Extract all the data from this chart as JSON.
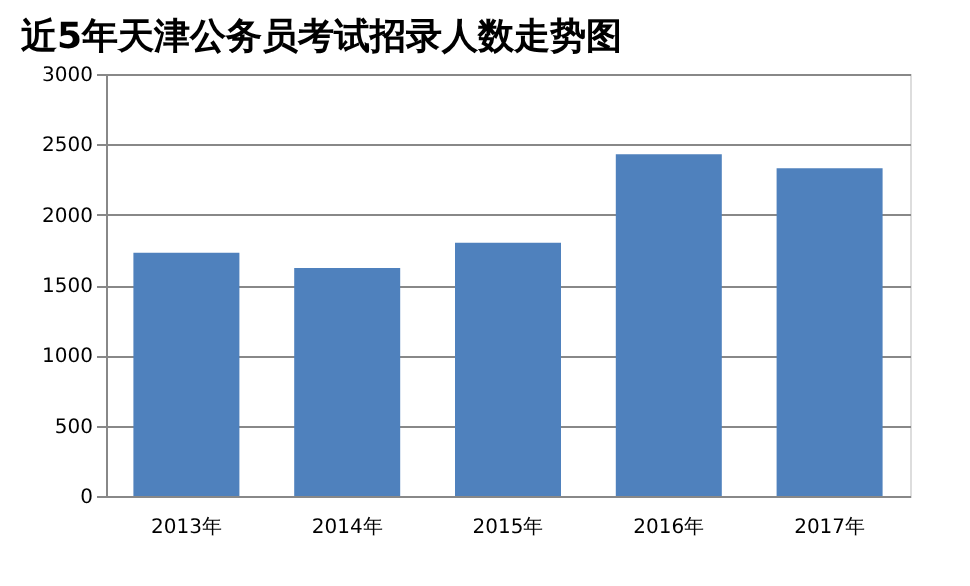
{
  "chart_data": {
    "type": "bar",
    "title": "近5年天津公务员考试招录人数走势图",
    "categories": [
      "2013年",
      "2014年",
      "2015年",
      "2016年",
      "2017年"
    ],
    "values": [
      1730,
      1620,
      1800,
      2430,
      2330
    ],
    "color": "#4f81bd",
    "ylim": [
      0,
      3000
    ],
    "yticks": [
      0,
      500,
      1000,
      1500,
      2000,
      2500,
      3000
    ],
    "grid": "y"
  }
}
